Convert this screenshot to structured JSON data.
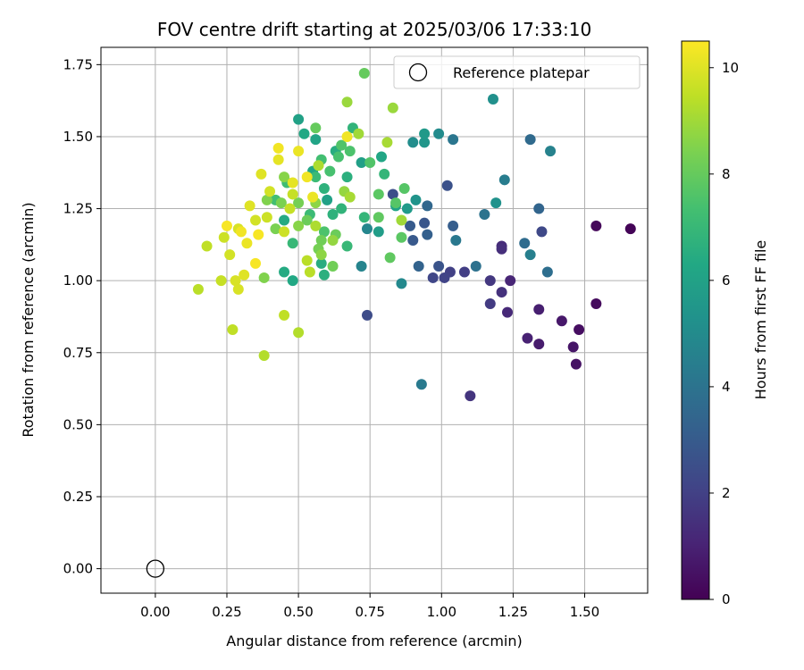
{
  "chart_data": {
    "type": "scatter",
    "title": "FOV centre drift starting at 2025/03/06 17:33:10",
    "xlabel": "Angular distance from reference (arcmin)",
    "ylabel": "Rotation from reference (arcmin)",
    "xlim": [
      -0.19,
      1.72
    ],
    "ylim": [
      -0.085,
      1.81
    ],
    "xticks": [
      0.0,
      0.25,
      0.5,
      0.75,
      1.0,
      1.25,
      1.5
    ],
    "xtick_labels": [
      "0.00",
      "0.25",
      "0.50",
      "0.75",
      "1.00",
      "1.25",
      "1.50"
    ],
    "yticks": [
      0.0,
      0.25,
      0.5,
      0.75,
      1.0,
      1.25,
      1.5,
      1.75
    ],
    "ytick_labels": [
      "0.00",
      "0.25",
      "0.50",
      "0.75",
      "1.00",
      "1.25",
      "1.50",
      "1.75"
    ],
    "grid": true,
    "legend": {
      "position": "top-right",
      "entries": [
        "Reference platepar"
      ]
    },
    "reference_point": {
      "x": 0.0,
      "y": 0.0
    },
    "colorbar": {
      "label": "Hours from first FF file",
      "colormap": "viridis",
      "range": [
        0,
        10.5
      ],
      "ticks": [
        0,
        2,
        4,
        6,
        8,
        10
      ],
      "tick_labels": [
        "0",
        "2",
        "4",
        "6",
        "8",
        "10"
      ]
    },
    "series": [
      {
        "color_encoded_by": "hours",
        "points": [
          [
            1.66,
            1.18,
            0.1
          ],
          [
            1.54,
            1.19,
            0.2
          ],
          [
            1.54,
            0.92,
            0.3
          ],
          [
            1.48,
            0.83,
            0.4
          ],
          [
            1.47,
            0.71,
            0.5
          ],
          [
            1.46,
            0.77,
            0.6
          ],
          [
            1.42,
            0.86,
            0.7
          ],
          [
            1.34,
            0.78,
            0.8
          ],
          [
            1.34,
            0.9,
            0.9
          ],
          [
            1.3,
            0.8,
            1.0
          ],
          [
            1.24,
            1.0,
            1.1
          ],
          [
            1.23,
            0.89,
            1.2
          ],
          [
            1.21,
            1.12,
            1.3
          ],
          [
            1.21,
            1.11,
            1.4
          ],
          [
            1.21,
            0.96,
            1.5
          ],
          [
            1.1,
            0.6,
            1.6
          ],
          [
            1.17,
            1.0,
            1.7
          ],
          [
            1.17,
            0.92,
            1.8
          ],
          [
            1.08,
            1.03,
            1.9
          ],
          [
            1.03,
            1.03,
            2.0
          ],
          [
            1.01,
            1.01,
            2.1
          ],
          [
            0.97,
            1.01,
            2.2
          ],
          [
            1.35,
            1.17,
            2.3
          ],
          [
            0.74,
            0.88,
            2.4
          ],
          [
            0.83,
            1.3,
            2.5
          ],
          [
            1.02,
            1.33,
            2.6
          ],
          [
            0.99,
            1.05,
            2.7
          ],
          [
            0.94,
            1.2,
            2.8
          ],
          [
            0.9,
            1.14,
            2.9
          ],
          [
            0.89,
            1.19,
            3.0
          ],
          [
            1.04,
            1.19,
            3.1
          ],
          [
            0.95,
            1.16,
            3.2
          ],
          [
            0.92,
            1.05,
            3.3
          ],
          [
            1.34,
            1.25,
            3.4
          ],
          [
            0.95,
            1.26,
            3.5
          ],
          [
            1.31,
            1.49,
            3.6
          ],
          [
            1.29,
            1.13,
            3.7
          ],
          [
            1.37,
            1.03,
            3.8
          ],
          [
            1.12,
            1.05,
            3.9
          ],
          [
            1.15,
            1.23,
            4.0
          ],
          [
            1.04,
            1.49,
            4.1
          ],
          [
            1.05,
            1.14,
            4.2
          ],
          [
            0.93,
            0.64,
            4.3
          ],
          [
            1.22,
            1.35,
            4.4
          ],
          [
            1.31,
            1.09,
            4.5
          ],
          [
            1.38,
            1.45,
            4.6
          ],
          [
            0.72,
            1.05,
            4.7
          ],
          [
            0.74,
            1.18,
            4.8
          ],
          [
            0.86,
            0.99,
            4.9
          ],
          [
            0.99,
            1.51,
            5.0
          ],
          [
            0.9,
            1.48,
            5.1
          ],
          [
            1.18,
            1.63,
            5.2
          ],
          [
            1.19,
            1.27,
            5.3
          ],
          [
            0.91,
            1.28,
            5.4
          ],
          [
            0.94,
            1.48,
            5.5
          ],
          [
            0.94,
            1.51,
            5.6
          ],
          [
            0.88,
            1.25,
            5.7
          ],
          [
            0.78,
            1.17,
            5.8
          ],
          [
            0.72,
            1.41,
            5.9
          ],
          [
            0.6,
            1.28,
            6.0
          ],
          [
            0.5,
            1.56,
            6.0
          ],
          [
            0.56,
            1.49,
            6.1
          ],
          [
            0.84,
            1.26,
            6.1
          ],
          [
            0.79,
            1.43,
            6.2
          ],
          [
            0.55,
            1.38,
            6.2
          ],
          [
            0.52,
            1.51,
            6.3
          ],
          [
            0.48,
            1.0,
            6.3
          ],
          [
            0.45,
            1.21,
            6.4
          ],
          [
            0.45,
            1.03,
            6.4
          ],
          [
            0.63,
            1.45,
            6.5
          ],
          [
            0.58,
            1.06,
            6.5
          ],
          [
            0.59,
            1.02,
            6.6
          ],
          [
            0.67,
            1.36,
            6.6
          ],
          [
            0.59,
            1.32,
            6.7
          ],
          [
            0.62,
            1.23,
            6.7
          ],
          [
            0.65,
            1.25,
            6.8
          ],
          [
            0.69,
            1.53,
            6.8
          ],
          [
            0.73,
            1.22,
            6.9
          ],
          [
            0.8,
            1.37,
            6.9
          ],
          [
            0.67,
            1.12,
            7.0
          ],
          [
            0.48,
            1.13,
            7.0
          ],
          [
            0.56,
            1.36,
            7.1
          ],
          [
            0.54,
            1.23,
            7.1
          ],
          [
            0.46,
            1.34,
            7.2
          ],
          [
            0.42,
            1.28,
            7.3
          ],
          [
            0.58,
            1.42,
            7.3
          ],
          [
            0.64,
            1.43,
            7.4
          ],
          [
            0.61,
            1.38,
            7.4
          ],
          [
            0.68,
            1.45,
            7.5
          ],
          [
            0.59,
            1.17,
            7.5
          ],
          [
            0.65,
            1.47,
            7.6
          ],
          [
            0.75,
            1.41,
            7.6
          ],
          [
            0.84,
            1.27,
            7.7
          ],
          [
            0.87,
            1.32,
            7.7
          ],
          [
            0.86,
            1.15,
            7.8
          ],
          [
            0.78,
            1.3,
            7.8
          ],
          [
            0.82,
            1.08,
            7.9
          ],
          [
            0.78,
            1.22,
            7.9
          ],
          [
            0.73,
            1.72,
            8.0
          ],
          [
            0.56,
            1.53,
            8.0
          ],
          [
            0.63,
            1.16,
            8.1
          ],
          [
            0.53,
            1.21,
            8.1
          ],
          [
            0.62,
            1.05,
            8.2
          ],
          [
            0.58,
            1.14,
            8.2
          ],
          [
            0.57,
            1.11,
            8.3
          ],
          [
            0.5,
            1.27,
            8.3
          ],
          [
            0.44,
            1.27,
            8.4
          ],
          [
            0.42,
            1.18,
            8.4
          ],
          [
            0.39,
            1.28,
            8.5
          ],
          [
            0.38,
            1.01,
            8.5
          ],
          [
            0.5,
            1.19,
            8.6
          ],
          [
            0.45,
            1.36,
            8.6
          ],
          [
            0.56,
            1.27,
            8.7
          ],
          [
            0.58,
            1.09,
            8.7
          ],
          [
            0.62,
            1.14,
            8.8
          ],
          [
            0.66,
            1.31,
            8.8
          ],
          [
            0.67,
            1.62,
            8.9
          ],
          [
            0.83,
            1.6,
            8.9
          ],
          [
            0.86,
            1.21,
            9.0
          ],
          [
            0.71,
            1.51,
            9.0
          ],
          [
            0.81,
            1.48,
            9.1
          ],
          [
            0.68,
            1.29,
            9.1
          ],
          [
            0.56,
            1.19,
            9.2
          ],
          [
            0.57,
            1.4,
            9.2
          ],
          [
            0.5,
            0.82,
            9.3
          ],
          [
            0.38,
            0.74,
            9.3
          ],
          [
            0.53,
            1.07,
            9.4
          ],
          [
            0.54,
            1.03,
            9.4
          ],
          [
            0.45,
            0.88,
            9.5
          ],
          [
            0.27,
            0.83,
            9.5
          ],
          [
            0.47,
            1.25,
            9.6
          ],
          [
            0.48,
            1.3,
            9.6
          ],
          [
            0.45,
            1.17,
            9.7
          ],
          [
            0.39,
            1.22,
            9.7
          ],
          [
            0.4,
            1.31,
            9.8
          ],
          [
            0.35,
            1.21,
            9.8
          ],
          [
            0.28,
            1.0,
            9.9
          ],
          [
            0.29,
            0.97,
            9.9
          ],
          [
            0.31,
            1.02,
            10.0
          ],
          [
            0.15,
            0.97,
            9.4
          ],
          [
            0.18,
            1.12,
            9.5
          ],
          [
            0.23,
            1.0,
            9.6
          ],
          [
            0.24,
            1.15,
            9.7
          ],
          [
            0.26,
            1.09,
            9.8
          ],
          [
            0.29,
            1.18,
            9.9
          ],
          [
            0.33,
            1.26,
            10.0
          ],
          [
            0.37,
            1.37,
            10.0
          ],
          [
            0.43,
            1.42,
            10.1
          ],
          [
            0.48,
            1.34,
            10.1
          ],
          [
            0.5,
            1.45,
            10.2
          ],
          [
            0.55,
            1.29,
            10.2
          ],
          [
            0.53,
            1.36,
            10.3
          ],
          [
            0.43,
            1.46,
            10.3
          ],
          [
            0.3,
            1.17,
            10.3
          ],
          [
            0.35,
            1.06,
            10.4
          ],
          [
            0.36,
            1.16,
            10.4
          ],
          [
            0.25,
            1.19,
            10.4
          ],
          [
            0.32,
            1.13,
            10.2
          ],
          [
            0.67,
            1.5,
            10.3
          ]
        ]
      }
    ]
  }
}
